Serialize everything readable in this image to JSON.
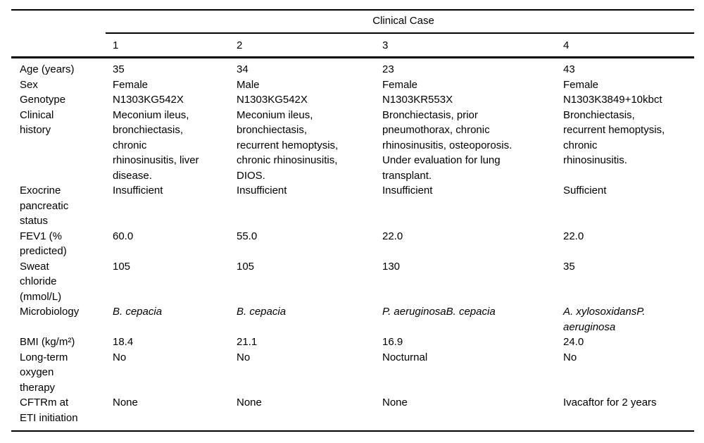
{
  "table": {
    "header": {
      "group_label": "Clinical Case",
      "columns": [
        "1",
        "2",
        "3",
        "4"
      ]
    },
    "rows": [
      {
        "label": "Age (years)",
        "values": [
          "35",
          "34",
          "23",
          "43"
        ]
      },
      {
        "label": "Sex",
        "values": [
          "Female",
          "Male",
          "Female",
          "Female"
        ]
      },
      {
        "label": "Genotype",
        "values": [
          "N1303KG542X",
          "N1303KG542X",
          "N1303KR553X",
          "N1303K3849+10kbct"
        ]
      },
      {
        "label": "Clinical\nhistory",
        "values": [
          "Meconium ileus,\nbronchiectasis,\nchronic\nrhinosinusitis, liver\ndisease.",
          "Meconium ileus,\nbronchiectasis,\nrecurrent hemoptysis,\nchronic rhinosinusitis,\nDIOS.",
          "Bronchiectasis, prior\npneumothorax, chronic\nrhinosinusitis, osteoporosis.\nUnder evaluation for lung\ntransplant.",
          "Bronchiectasis,\nrecurrent hemoptysis,\nchronic\nrhinosinusitis."
        ]
      },
      {
        "label": "Exocrine\npancreatic\nstatus",
        "values": [
          "Insufficient",
          "Insufficient",
          "Insufficient",
          "Sufficient"
        ]
      },
      {
        "label": "FEV1 (%\npredicted)",
        "values": [
          "60.0",
          "55.0",
          "22.0",
          "22.0"
        ]
      },
      {
        "label": "Sweat\nchloride\n(mmol/L)",
        "values": [
          "105",
          "105",
          "130",
          "35"
        ]
      },
      {
        "label": "Microbiology",
        "values": [
          "B. cepacia",
          "B. cepacia",
          "P. aeruginosaB. cepacia",
          "A. xylosoxidansP.\naeruginosa"
        ]
      },
      {
        "label": "BMI (kg/m²)",
        "values": [
          "18.4",
          "21.1",
          "16.9",
          "24.0"
        ]
      },
      {
        "label": "Long-term\noxygen\ntherapy",
        "values": [
          "No",
          "No",
          "Nocturnal",
          "No"
        ]
      },
      {
        "label": "CFTRm at\nETI initiation",
        "values": [
          "None",
          "None",
          "None",
          "Ivacaftor for 2 years"
        ]
      }
    ]
  }
}
